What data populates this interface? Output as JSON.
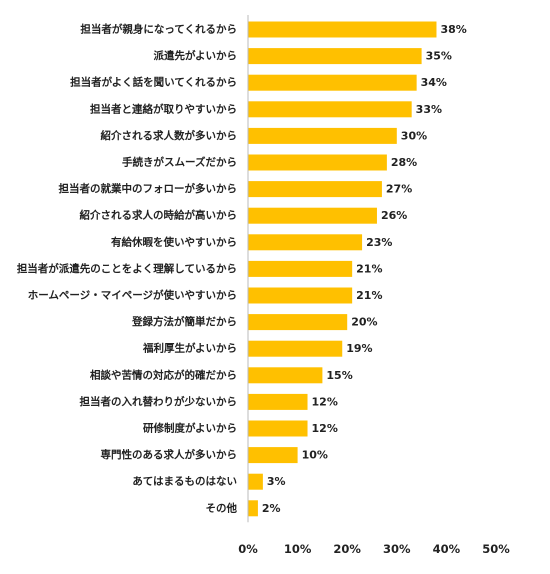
{
  "chart_data": {
    "type": "bar",
    "orientation": "horizontal",
    "title": "",
    "xlabel": "",
    "ylabel": "",
    "xlim": [
      0,
      50
    ],
    "grid": false,
    "bar_color": "#FFC000",
    "value_suffix": "%",
    "ticks": [
      "0%",
      "10%",
      "20%",
      "30%",
      "40%",
      "50%"
    ],
    "categories": [
      "担当者が親身になってくれるから",
      "派遣先がよいから",
      "担当者がよく話を聞いてくれるから",
      "担当者と連絡が取りやすいから",
      "紹介される求人数が多いから",
      "手続きがスムーズだから",
      "担当者の就業中のフォローが多いから",
      "紹介される求人の時給が高いから",
      "有給休暇を使いやすいから",
      "担当者が派遣先のことをよく理解しているから",
      "ホームページ・マイページが使いやすいから",
      "登録方法が簡単だから",
      "福利厚生がよいから",
      "相談や苦情の対応が的確だから",
      "担当者の入れ替わりが少ないから",
      "研修制度がよいから",
      "専門性のある求人が多いから",
      "あてはまるものはない",
      "その他"
    ],
    "values": [
      38,
      35,
      34,
      33,
      30,
      28,
      27,
      26,
      23,
      21,
      21,
      20,
      19,
      15,
      12,
      12,
      10,
      3,
      2
    ],
    "value_labels": [
      "38%",
      "35%",
      "34%",
      "33%",
      "30%",
      "28%",
      "27%",
      "26%",
      "23%",
      "21%",
      "21%",
      "20%",
      "19%",
      "15%",
      "12%",
      "12%",
      "10%",
      "3%",
      "2%"
    ]
  }
}
